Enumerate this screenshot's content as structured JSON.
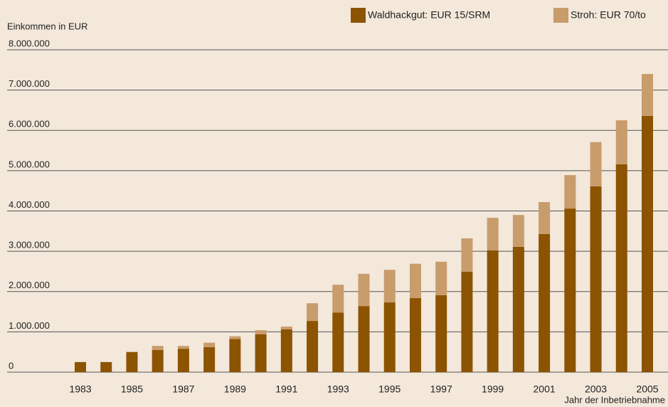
{
  "chart_data": {
    "type": "stacked_bar",
    "y_label": "Einkommen in EUR",
    "x_label": "Jahr der Inbetriebnahme",
    "categories": [
      "1983",
      null,
      "1985",
      null,
      "1987",
      null,
      "1989",
      null,
      "1991",
      null,
      "1993",
      null,
      "1995",
      null,
      "1997",
      null,
      "1999",
      null,
      "2001",
      null,
      "2003",
      null,
      "2005"
    ],
    "series": [
      {
        "name": "Waldhackgut: EUR 15/SRM",
        "color": "#8c5300",
        "values": [
          250000,
          250000,
          500000,
          550000,
          580000,
          620000,
          820000,
          940000,
          1060000,
          1270000,
          1480000,
          1640000,
          1730000,
          1840000,
          1910000,
          2490000,
          3020000,
          3110000,
          3430000,
          4060000,
          4610000,
          5160000,
          6360000
        ]
      },
      {
        "name": "Stroh: EUR 70/to",
        "color": "#c99c6c",
        "values": [
          0,
          0,
          0,
          100000,
          70000,
          110000,
          70000,
          100000,
          70000,
          440000,
          690000,
          800000,
          810000,
          850000,
          830000,
          830000,
          810000,
          790000,
          790000,
          830000,
          1100000,
          1090000,
          1040000
        ]
      }
    ],
    "ylim": [
      0,
      8000000
    ],
    "yticks": [
      0,
      {
        "value": 1000000,
        "label": "1.000.000"
      },
      {
        "value": 2000000,
        "label": "2.000.000"
      },
      {
        "value": 3000000,
        "label": "3.000.000"
      },
      {
        "value": 4000000,
        "label": "4.000.000"
      },
      {
        "value": 5000000,
        "label": "5.000.000"
      },
      {
        "value": 6000000,
        "label": "6.000.000"
      },
      {
        "value": 7000000,
        "label": "7.000.000"
      },
      {
        "value": 8000000,
        "label": "8.000.000"
      }
    ],
    "grid": true
  }
}
